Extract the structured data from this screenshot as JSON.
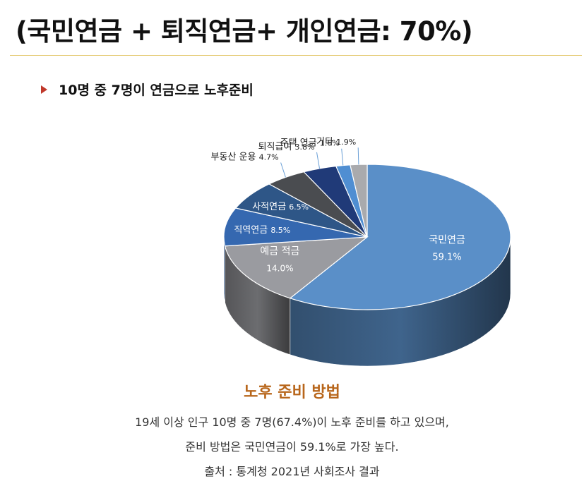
{
  "title": "(국민연금 + 퇴직연금+ 개인연금: 70%)",
  "bullet": "10명 중 7명이 연금으로 노후준비",
  "colors": {
    "accent_rule": "#e3c76a",
    "bullet": "#c0392b",
    "caption_title": "#b8661b"
  },
  "chart_data": {
    "type": "pie",
    "style": "3d",
    "slices": [
      {
        "label": "국민연금",
        "value": 59.1,
        "value_text": "59.1%",
        "color": "#5a8fc8"
      },
      {
        "label": "예금 적금",
        "value": 14.0,
        "value_text": "14.0%",
        "color": "#9a9ba0"
      },
      {
        "label": "직역연금",
        "value": 8.5,
        "value_text": "8.5%",
        "color": "#3568b0"
      },
      {
        "label": "사적연금",
        "value": 6.5,
        "value_text": "6.5%",
        "color": "#2e5687"
      },
      {
        "label": "부동산 운용",
        "value": 4.7,
        "value_text": "4.7%",
        "color": "#4a4c50"
      },
      {
        "label": "퇴직급여",
        "value": 3.8,
        "value_text": "3.8%",
        "color": "#203a78"
      },
      {
        "label": "주택 연금",
        "value": 1.6,
        "value_text": "1.6%",
        "color": "#4f8ed2"
      },
      {
        "label": "기타",
        "value": 1.9,
        "value_text": "1.9%",
        "color": "#a9aaad"
      }
    ]
  },
  "caption": {
    "title": "노후 준비 방법",
    "line1": "19세 이상 인구 10명 중 7명(67.4%)이 노후 준비를 하고 있으며,",
    "line2": "준비 방법은 국민연금이 59.1%로 가장 높다.",
    "source": "출처 : 통계청 2021년 사회조사 결과"
  }
}
